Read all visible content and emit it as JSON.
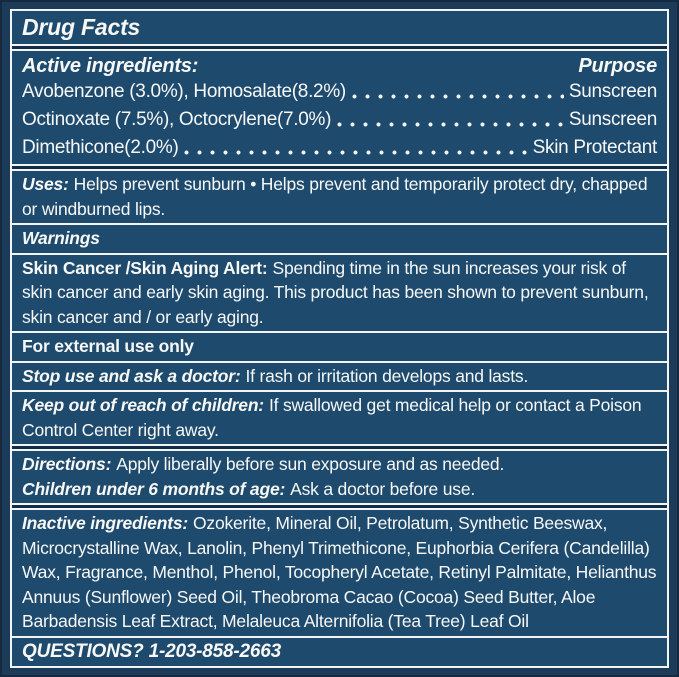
{
  "label": {
    "title": "Drug Facts",
    "active": {
      "heading": "Active ingredients:",
      "purpose_heading": "Purpose",
      "rows": [
        {
          "ingredient": "Avobenzone (3.0%), Homosalate(8.2%)",
          "purpose": "Sunscreen"
        },
        {
          "ingredient": "Octinoxate (7.5%), Octocrylene(7.0%)",
          "purpose": "Sunscreen"
        },
        {
          "ingredient": "Dimethicone(2.0%)",
          "purpose": "Skin Protectant"
        }
      ]
    },
    "uses": {
      "heading": "Uses:",
      "text": "Helps prevent sunburn • Helps prevent and temporarily protect dry, chapped or windburned lips."
    },
    "warnings_heading": "Warnings",
    "skin_alert": {
      "heading": "Skin Cancer /Skin Aging Alert:",
      "text": "Spending time in the sun increases your risk of skin cancer and early skin aging. This product has been shown to prevent sunburn, skin cancer and / or early aging."
    },
    "external_use": "For external use only",
    "stop_use": {
      "heading": "Stop use and ask a doctor:",
      "text": "If rash or irritation develops and lasts."
    },
    "keep_out": {
      "heading": "Keep out of reach of children:",
      "text": "If swallowed get medical help or contact a Poison Control Center right away."
    },
    "directions": {
      "heading": "Directions:",
      "text": "Apply liberally before sun exposure and as needed."
    },
    "children": {
      "heading": "Children under 6 months of age:",
      "text": "Ask a doctor before use."
    },
    "inactive": {
      "heading": "Inactive ingredients:",
      "text": "Ozokerite, Mineral Oil, Petrolatum, Synthetic Beeswax, Microcrystalline Wax, Lanolin, Phenyl Trimethicone, Euphorbia Cerifera (Candelilla) Wax, Fragrance, Menthol, Phenol, Tocopheryl Acetate, Retinyl Palmitate, Helianthus Annuus (Sunflower) Seed Oil, Theobroma Cacao (Cocoa) Seed Butter, Aloe Barbadensis Leaf Extract, Melaleuca Alternifolia (Tea Tree) Leaf Oil"
    },
    "questions": "QUESTIONS? 1-203-858-2663",
    "colors": {
      "panel_blue": "#1e4a6e",
      "frame_navy": "#1c3b59",
      "edge_dark": "#16293e",
      "rule_white": "#f2f5f3",
      "text_white": "#f7f8f6",
      "gap_dark": "#122c47"
    }
  }
}
